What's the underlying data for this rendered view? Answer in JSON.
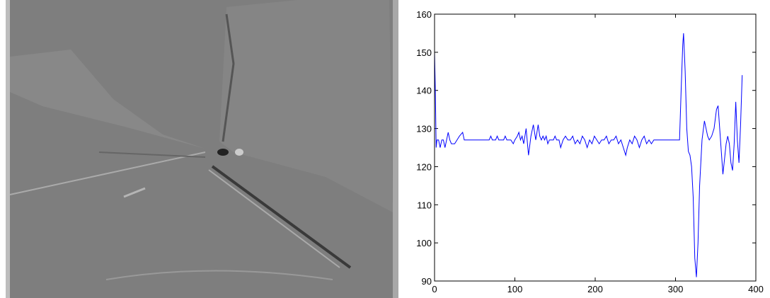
{
  "chart_data": {
    "type": "line",
    "color": "#0000ff",
    "x": [
      0,
      1,
      2,
      3,
      5,
      7,
      9,
      11,
      13,
      15,
      17,
      19,
      21,
      25,
      28,
      31,
      35,
      37,
      40,
      68,
      70,
      72,
      76,
      78,
      80,
      86,
      88,
      90,
      95,
      98,
      100,
      103,
      105,
      107,
      109,
      111,
      114,
      117,
      120,
      123,
      126,
      129,
      131,
      133,
      135,
      137,
      139,
      141,
      143,
      148,
      150,
      152,
      155,
      157,
      160,
      163,
      166,
      169,
      172,
      175,
      178,
      181,
      184,
      187,
      190,
      193,
      196,
      199,
      202,
      205,
      208,
      211,
      214,
      217,
      220,
      223,
      226,
      229,
      232,
      235,
      238,
      240,
      243,
      246,
      249,
      252,
      255,
      258,
      261,
      264,
      267,
      270,
      273,
      276,
      280,
      290,
      300,
      305,
      307,
      309,
      310,
      312,
      314,
      316,
      318,
      320,
      322,
      324,
      326,
      328,
      330,
      333,
      336,
      338,
      340,
      342,
      345,
      348,
      351,
      353,
      355,
      357,
      359,
      361,
      363,
      365,
      367,
      369,
      371,
      373,
      375,
      377,
      379,
      381,
      383
    ],
    "values": [
      150,
      140,
      125,
      127,
      127,
      125,
      127,
      127,
      125,
      127,
      129,
      127,
      126,
      126,
      127,
      128,
      129,
      127,
      127,
      127,
      128,
      127,
      127,
      128,
      127,
      127,
      128,
      127,
      127,
      126,
      127,
      128,
      129,
      127,
      128,
      126,
      130,
      123,
      128,
      131,
      127,
      131,
      128,
      127,
      128,
      127,
      128,
      126,
      127,
      127,
      128,
      127,
      127,
      125,
      127,
      128,
      127,
      127,
      128,
      126,
      127,
      126,
      128,
      127,
      125,
      127,
      126,
      128,
      127,
      126,
      127,
      127,
      128,
      126,
      127,
      127,
      128,
      126,
      127,
      125,
      123,
      125,
      127,
      126,
      128,
      127,
      125,
      127,
      128,
      126,
      127,
      126,
      127,
      127,
      127,
      127,
      127,
      127,
      140,
      152,
      155,
      145,
      130,
      124,
      123,
      120,
      112,
      96,
      91,
      100,
      115,
      127,
      132,
      130,
      128,
      127,
      128,
      130,
      135,
      136,
      130,
      124,
      118,
      122,
      126,
      128,
      126,
      121,
      119,
      126,
      137,
      127,
      121,
      131,
      144
    ],
    "xlim": [
      0,
      400
    ],
    "ylim": [
      90,
      160
    ],
    "xticks": [
      0,
      100,
      200,
      300,
      400
    ],
    "yticks": [
      90,
      100,
      110,
      120,
      130,
      140,
      150,
      160
    ]
  }
}
